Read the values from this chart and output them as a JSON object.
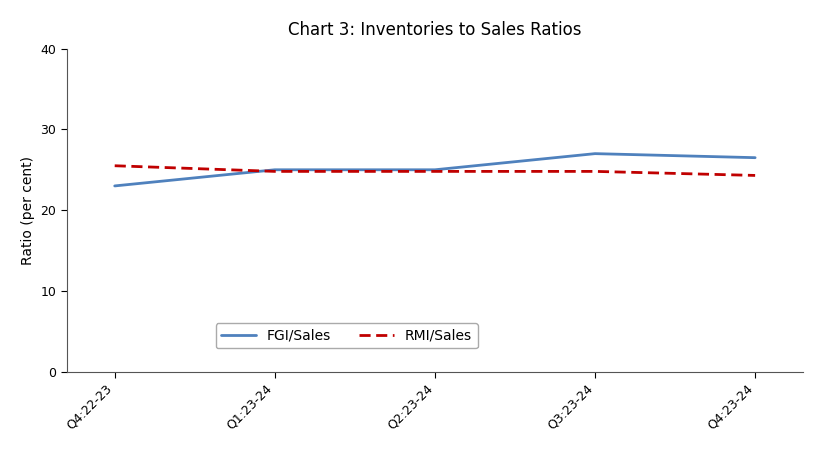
{
  "title": "Chart 3: Inventories to Sales Ratios",
  "xlabel": "",
  "ylabel": "Ratio (per cent)",
  "categories": [
    "Q4:22-23",
    "Q1:23-24",
    "Q2:23-24",
    "Q3:23-24",
    "Q4:23-24"
  ],
  "fgi_values": [
    23.0,
    25.0,
    25.0,
    27.0,
    26.5
  ],
  "rmi_values": [
    25.5,
    24.8,
    24.8,
    24.8,
    24.3
  ],
  "fgi_color": "#4f81bd",
  "rmi_color": "#c00000",
  "fgi_label": "FGI/Sales",
  "rmi_label": "RMI/Sales",
  "ylim": [
    0,
    40
  ],
  "yticks": [
    0,
    10,
    20,
    30,
    40
  ],
  "title_fontsize": 12,
  "axis_fontsize": 10,
  "tick_fontsize": 9,
  "legend_fontsize": 10,
  "background_color": "#ffffff",
  "grid": false
}
